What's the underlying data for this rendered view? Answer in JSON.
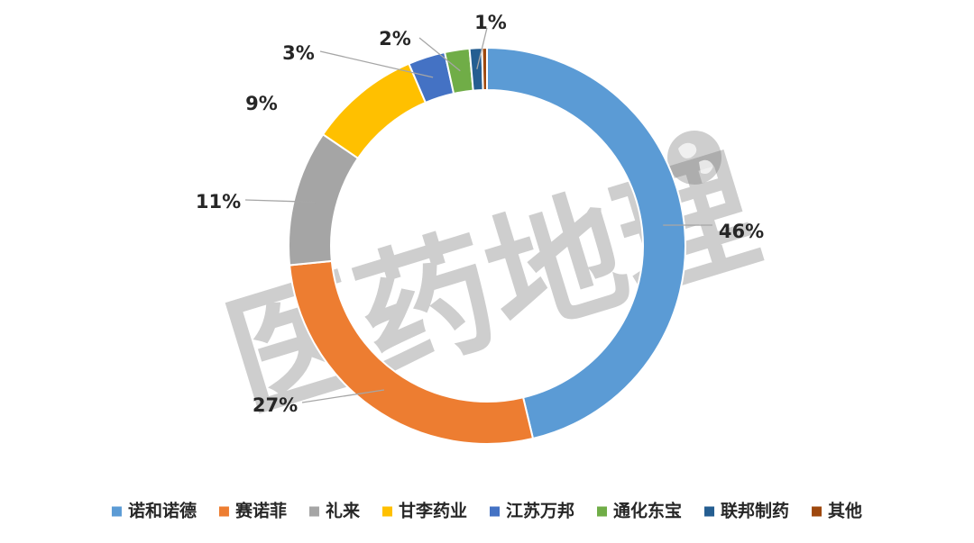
{
  "watermark": {
    "text": "医药地理"
  },
  "chart_data": {
    "type": "pie",
    "style": "donut",
    "legend_position": "bottom",
    "series": [
      {
        "name": "诺和诺德",
        "value": 46,
        "label": "46%",
        "color": "#5b9bd5"
      },
      {
        "name": "赛诺菲",
        "value": 27,
        "label": "27%",
        "color": "#ed7d31"
      },
      {
        "name": "礼来",
        "value": 11,
        "label": "11%",
        "color": "#a5a5a5"
      },
      {
        "name": "甘李药业",
        "value": 9,
        "label": "9%",
        "color": "#ffc000"
      },
      {
        "name": "江苏万邦",
        "value": 3,
        "label": "3%",
        "color": "#4472c4"
      },
      {
        "name": "通化东宝",
        "value": 2,
        "label": "2%",
        "color": "#70ad47"
      },
      {
        "name": "联邦制药",
        "value": 1,
        "label": "1%",
        "color": "#255e91"
      },
      {
        "name": "其他",
        "value": 0.4,
        "label": "",
        "color": "#9e480e"
      }
    ]
  }
}
